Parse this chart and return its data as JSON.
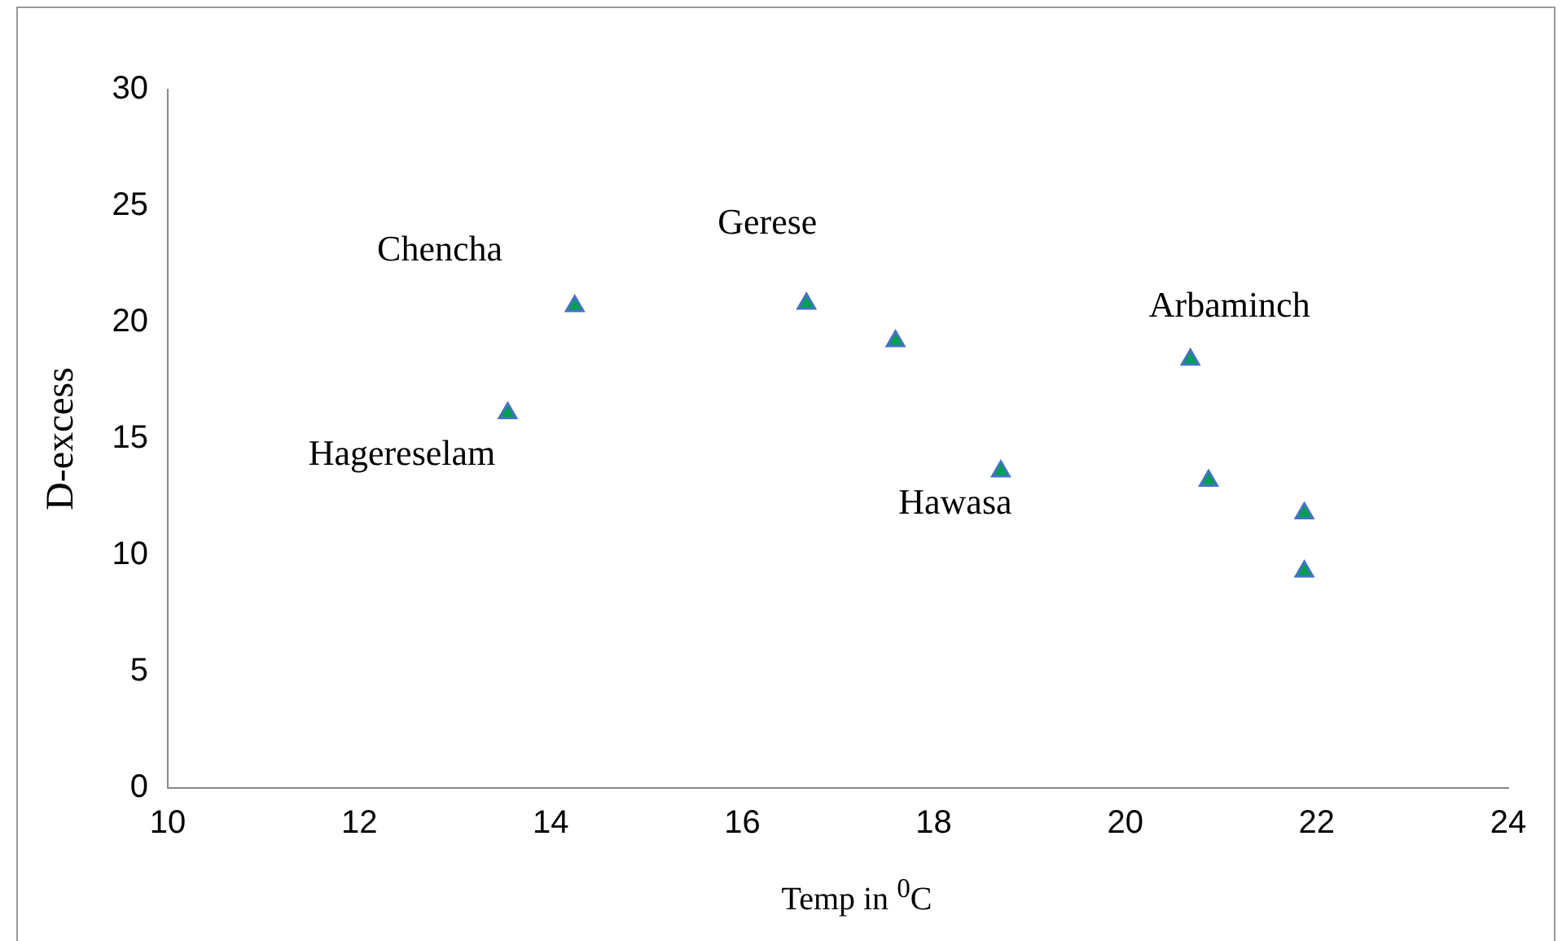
{
  "chart_data": {
    "type": "scatter",
    "xlabel": "Temp in $^{0}$C",
    "ylabel": "D-excess",
    "x": [
      13.55,
      14.25,
      16.67,
      17.6,
      18.7,
      20.68,
      20.87,
      21.87,
      21.87
    ],
    "series": [
      {
        "color": "#00a050",
        "values": [
          16.1,
          20.7,
          20.8,
          19.2,
          13.6,
          18.4,
          13.2,
          11.8,
          9.3
        ]
      }
    ],
    "xlim": [
      10,
      24
    ],
    "xticks": [
      10,
      12,
      14,
      16,
      18,
      20,
      22,
      24
    ],
    "ylim": [
      0,
      30
    ],
    "yticks": [
      0,
      5,
      10,
      15,
      20,
      25,
      30
    ],
    "grid": false,
    "legend": false,
    "marker": "triangle",
    "annotations": [
      "Chencha",
      {
        "text": "Gerese",
        "x": 16.67,
        "y": 20.8
      },
      {
        "text": "Hagereselam",
        "x": 13.55,
        "y": 16.1
      },
      {
        "text": "Hawasa",
        "x": 18.7,
        "y": 13.6
      },
      {
        "text": "Arbaminch",
        "x": 20.68,
        "y": 18.4
      }
    ]
  }
}
